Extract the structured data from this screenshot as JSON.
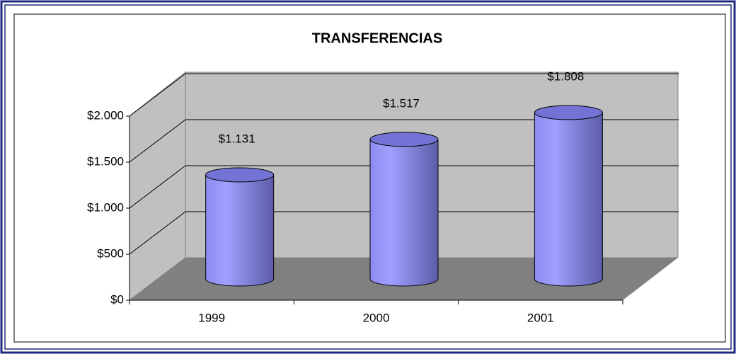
{
  "chart_data": {
    "type": "bar",
    "title": "TRANSFERENCIAS",
    "categories": [
      "1999",
      "2000",
      "2001"
    ],
    "values": [
      1131,
      1517,
      1808
    ],
    "value_labels": [
      "$1.131",
      "$1.517",
      "$1.808"
    ],
    "color": "#9999ff",
    "ylim": [
      0,
      2000
    ],
    "yticks": [
      {
        "value": 0,
        "label": "$0"
      },
      {
        "value": 500,
        "label": "$500"
      },
      {
        "value": 1000,
        "label": "$1.000"
      },
      {
        "value": 1500,
        "label": "$1.500"
      },
      {
        "value": 2000,
        "label": "$2.000"
      }
    ],
    "grid": true
  }
}
